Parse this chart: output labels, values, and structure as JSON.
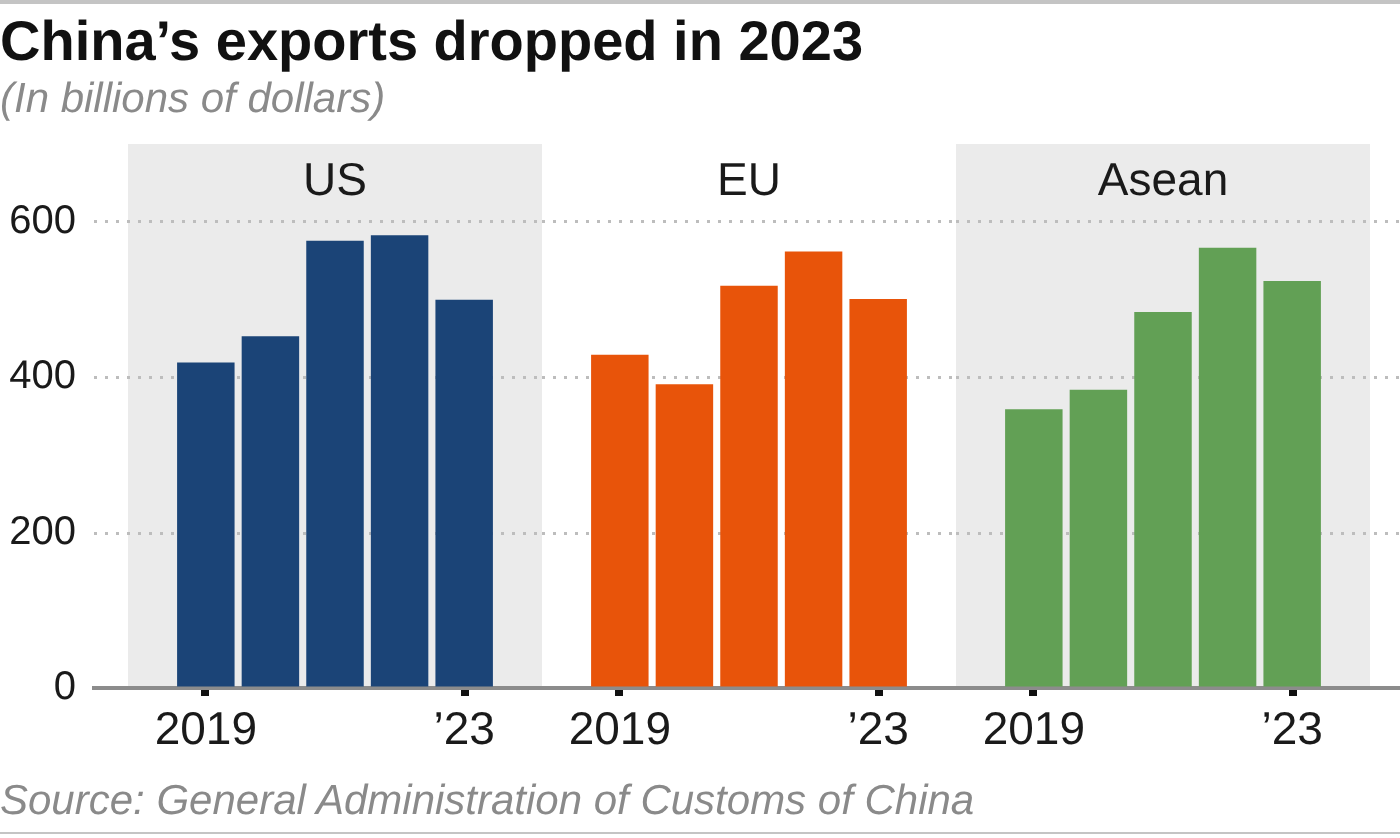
{
  "chart_data": [
    {
      "type": "bar",
      "title": "China’s exports dropped in 2023",
      "subtitle": "(In billions of dollars)",
      "categories": [
        "2019",
        null,
        null,
        null,
        "’23"
      ],
      "series": [
        {
          "name": "US",
          "color": "#1b4477",
          "values": [
            419,
            453,
            576,
            583,
            500
          ]
        }
      ],
      "ylim": [
        0,
        600
      ],
      "yticks": [
        0,
        200,
        400,
        600
      ],
      "grid": "y",
      "annotations": [
        "Source: General Administration of Customs of China"
      ]
    },
    {
      "type": "bar",
      "categories": [
        "2019",
        null,
        null,
        null,
        "’23"
      ],
      "series": [
        {
          "name": "EU",
          "color": "#e8540a",
          "values": [
            429,
            391,
            518,
            562,
            501
          ]
        }
      ],
      "ylim": [
        0,
        600
      ],
      "yticks": [
        0,
        200,
        400,
        600
      ],
      "grid": "y",
      "tick_labels": "x"
    },
    {
      "type": "bar",
      "categories": [
        "2019",
        null,
        null,
        null,
        "’23"
      ],
      "series": [
        {
          "name": "Asean",
          "color": "#62a055",
          "values": [
            359,
            384,
            484,
            567,
            524
          ]
        }
      ],
      "ylim": [
        0,
        600
      ],
      "yticks": [
        0,
        200,
        400,
        600
      ],
      "grid": "y",
      "tick_labels": "x"
    }
  ]
}
